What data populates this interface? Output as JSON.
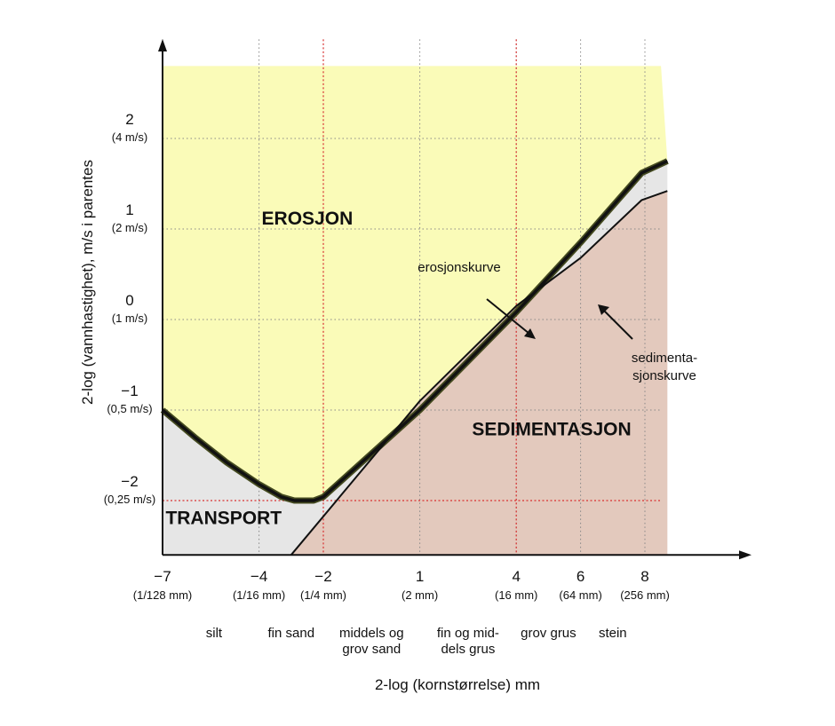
{
  "chart_data": {
    "type": "area",
    "xlabel": "2-log (kornstørrelse) mm",
    "ylabel": "2-log (vannhastighet), m/s i parentes",
    "xlim": [
      -7,
      8.5
    ],
    "ylim": [
      -2.6,
      2.8
    ],
    "grid": true,
    "x_ticks": [
      {
        "value": -7,
        "label": "−7",
        "sublabel": "(1/128 mm)"
      },
      {
        "value": -4,
        "label": "−4",
        "sublabel": "(1/16 mm)"
      },
      {
        "value": -2,
        "label": "−2",
        "sublabel": "(1/4 mm)"
      },
      {
        "value": 1,
        "label": "1",
        "sublabel": "(2 mm)"
      },
      {
        "value": 4,
        "label": "4",
        "sublabel": "(16 mm)"
      },
      {
        "value": 6,
        "label": "6",
        "sublabel": "(64 mm)"
      },
      {
        "value": 8,
        "label": "8",
        "sublabel": "(256 mm)"
      }
    ],
    "y_ticks": [
      {
        "value": 2,
        "label": "2",
        "sublabel": "(4 m/s)"
      },
      {
        "value": 1,
        "label": "1",
        "sublabel": "(2 m/s)"
      },
      {
        "value": 0,
        "label": "0",
        "sublabel": "(1 m/s)"
      },
      {
        "value": -1,
        "label": "−1",
        "sublabel": "(0,5 m/s)"
      },
      {
        "value": -2,
        "label": "−2",
        "sublabel": "(0,25 m/s)"
      }
    ],
    "categories": [
      {
        "label": "silt",
        "x": -5.4
      },
      {
        "label": "fin sand",
        "x": -3.0
      },
      {
        "label": "middels og\ngrov sand",
        "x": -0.5
      },
      {
        "label": "fin og mid-\ndels grus",
        "x": 2.5
      },
      {
        "label": "grov grus",
        "x": 5.0
      },
      {
        "label": "stein",
        "x": 7.0
      }
    ],
    "regions": [
      {
        "name": "EROSJON",
        "color": "#fafbb8",
        "label_x": -2.5,
        "label_y": 1.05
      },
      {
        "name": "TRANSPORT",
        "color": "#e6e6e6",
        "label_x": -5.1,
        "label_y": -2.26
      },
      {
        "name": "SEDIMENTASJON",
        "color": "#e3c9bd",
        "label_x": 5.1,
        "label_y": -1.28
      }
    ],
    "series": [
      {
        "name": "erosjonskurve",
        "color": "#111111",
        "points": [
          [
            -7,
            -1.0
          ],
          [
            -6,
            -1.3
          ],
          [
            -5,
            -1.58
          ],
          [
            -4,
            -1.82
          ],
          [
            -3.3,
            -1.96
          ],
          [
            -2.9,
            -2.0
          ],
          [
            -2.3,
            -2.0
          ],
          [
            -2.0,
            -1.96
          ],
          [
            -1.5,
            -1.8
          ],
          [
            1,
            -1.0
          ],
          [
            4,
            0.08
          ],
          [
            6,
            0.85
          ],
          [
            7.9,
            1.62
          ],
          [
            8.7,
            1.75
          ]
        ]
      },
      {
        "name": "sedimenta-\nsjonskurve",
        "color": "#111111",
        "points": [
          [
            -3.0,
            -2.6
          ],
          [
            1,
            -0.9
          ],
          [
            4,
            0.15
          ],
          [
            6,
            0.68
          ],
          [
            7.9,
            1.32
          ],
          [
            8.7,
            1.42
          ]
        ]
      }
    ],
    "reference_lines": [
      {
        "axis": "x",
        "value": -2,
        "color": "#d93030"
      },
      {
        "axis": "x",
        "value": 4,
        "color": "#d93030"
      },
      {
        "axis": "y",
        "value": -2,
        "color": "#d93030"
      }
    ],
    "annotations": [
      {
        "text": "erosjonskurve",
        "target_series": 0
      },
      {
        "text": "sedimenta-\nsjonskurve",
        "target_series": 1
      }
    ]
  }
}
